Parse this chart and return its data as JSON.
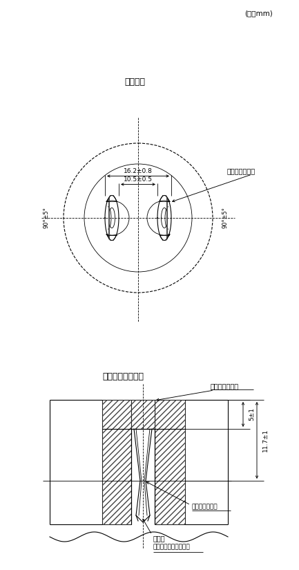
{
  "title_top": "(単位mm)",
  "title1": "刃受け穴",
  "title2": "刃受け穴の断面図",
  "dim1": "16.2±0.8",
  "dim2": "10.5±0.5",
  "label_mentori1": "面取りすること",
  "label_mentori2": "面取りすること",
  "label_angle1": "90°±5°",
  "label_angle2": "90°±5°",
  "label_dim3": "5±1",
  "label_dim4": "11.7±1",
  "label_bossi": "ボッチの中心線",
  "label_blade": "刃受け",
  "label_blade2": "（形状は一例を示す）",
  "bg_color": "#ffffff",
  "line_color": "#000000"
}
